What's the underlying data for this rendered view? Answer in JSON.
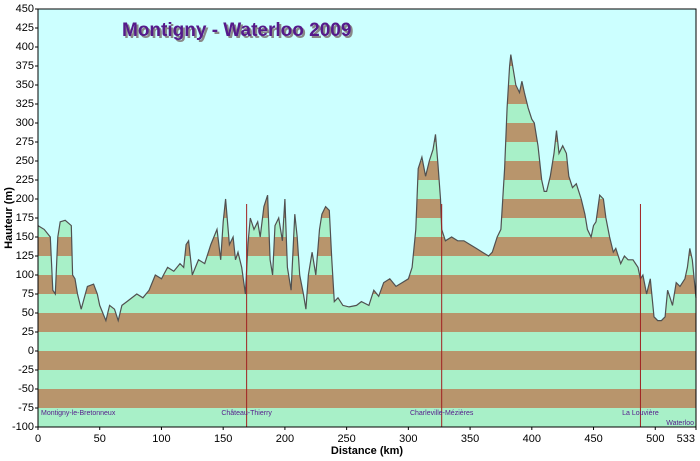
{
  "chart_data": {
    "type": "area",
    "title": "Montigny - Waterloo 2009",
    "xlabel": "Distance   (km)",
    "ylabel": "Hauteur (m)",
    "xlim": [
      0,
      533
    ],
    "ylim": [
      -100,
      450
    ],
    "xticks": [
      0,
      50,
      100,
      150,
      200,
      250,
      300,
      350,
      400,
      450,
      500,
      533
    ],
    "yticks": [
      -100,
      -75,
      -50,
      -25,
      0,
      25,
      50,
      75,
      100,
      125,
      150,
      175,
      200,
      225,
      250,
      275,
      300,
      325,
      350,
      375,
      400,
      425,
      450
    ],
    "background": "#ccffff",
    "band_colors": [
      "#a8f0c8",
      "#b8956c"
    ],
    "line_color": "#505050",
    "marker_color": "#a02020",
    "label_color": "#551a8b",
    "x": [
      0,
      5,
      10,
      12,
      14,
      16,
      18,
      22,
      27,
      28,
      30,
      32,
      35,
      40,
      45,
      48,
      50,
      55,
      58,
      62,
      65,
      68,
      72,
      80,
      85,
      90,
      95,
      100,
      105,
      110,
      115,
      118,
      120,
      122,
      125,
      130,
      135,
      140,
      145,
      148,
      150,
      152,
      155,
      158,
      160,
      162,
      165,
      168,
      170,
      172,
      175,
      178,
      180,
      183,
      186,
      188,
      190,
      192,
      195,
      198,
      200,
      202,
      205,
      208,
      210,
      212,
      215,
      217,
      219,
      222,
      225,
      228,
      230,
      233,
      236,
      238,
      240,
      243,
      247,
      252,
      258,
      262,
      268,
      272,
      276,
      280,
      285,
      290,
      295,
      300,
      303,
      306,
      308,
      311,
      314,
      317,
      320,
      322,
      324,
      326,
      327,
      330,
      335,
      340,
      345,
      350,
      355,
      360,
      365,
      368,
      372,
      375,
      378,
      380,
      382,
      383,
      385,
      387,
      390,
      392,
      394,
      397,
      400,
      402,
      405,
      408,
      410,
      412,
      415,
      418,
      420,
      422,
      425,
      428,
      430,
      433,
      436,
      440,
      443,
      445,
      448,
      450,
      452,
      455,
      458,
      460,
      463,
      466,
      468,
      472,
      475,
      478,
      482,
      486,
      488,
      490,
      493,
      496,
      499,
      502,
      505,
      508,
      510,
      512,
      514,
      517,
      520,
      524,
      526,
      528,
      530,
      533
    ],
    "values": [
      165,
      160,
      150,
      80,
      75,
      150,
      170,
      172,
      165,
      100,
      95,
      75,
      55,
      85,
      88,
      75,
      60,
      40,
      60,
      55,
      40,
      60,
      65,
      75,
      70,
      80,
      100,
      95,
      110,
      105,
      115,
      110,
      140,
      145,
      100,
      120,
      115,
      140,
      160,
      120,
      170,
      200,
      140,
      150,
      120,
      130,
      110,
      75,
      140,
      175,
      160,
      170,
      150,
      190,
      205,
      120,
      100,
      165,
      175,
      145,
      200,
      110,
      80,
      180,
      150,
      100,
      75,
      55,
      100,
      130,
      100,
      160,
      180,
      190,
      185,
      120,
      65,
      70,
      60,
      58,
      60,
      65,
      60,
      80,
      72,
      90,
      95,
      85,
      90,
      95,
      110,
      160,
      240,
      255,
      230,
      250,
      265,
      285,
      245,
      200,
      160,
      145,
      150,
      145,
      145,
      140,
      135,
      130,
      125,
      130,
      150,
      160,
      240,
      320,
      375,
      390,
      370,
      350,
      340,
      355,
      340,
      320,
      305,
      300,
      270,
      225,
      210,
      210,
      230,
      260,
      290,
      260,
      270,
      260,
      230,
      215,
      220,
      200,
      180,
      160,
      150,
      165,
      170,
      205,
      200,
      175,
      150,
      130,
      135,
      115,
      125,
      120,
      120,
      110,
      95,
      100,
      75,
      95,
      45,
      40,
      40,
      45,
      80,
      70,
      60,
      90,
      85,
      95,
      110,
      135,
      120,
      70
    ],
    "places": [
      {
        "name": "Montigny-le-Bretonneux",
        "x": 0
      },
      {
        "name": "Château-Thierry",
        "x": 169
      },
      {
        "name": "Charleville-Mézières",
        "x": 327
      },
      {
        "name": "La Louvière",
        "x": 488
      },
      {
        "name": "Waterloo",
        "x": 533
      }
    ]
  }
}
